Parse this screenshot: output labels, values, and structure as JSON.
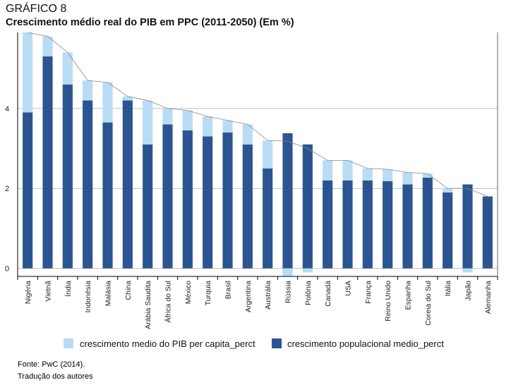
{
  "header": {
    "label": "GRÁFICO 8",
    "title": "Crescimento médio real do PIB em PPC (2011-2050) (Em %)"
  },
  "footer": {
    "source": "Fonte: PwC (2014).",
    "note": "Tradução dos autores"
  },
  "chart_data": {
    "type": "bar",
    "stacked": true,
    "categories": [
      "Nigéria",
      "Vietnã",
      "Índia",
      "Indonésia",
      "Malásia",
      "China",
      "Arábia Saudita",
      "África do Sul",
      "México",
      "Turquia",
      "Brasil",
      "Argentina",
      "Austrália",
      "Rússia",
      "Polônia",
      "Canadá",
      "USA",
      "França",
      "Reino Unido",
      "Espanha",
      "Coreia do Sul",
      "Itália",
      "Japão",
      "Alemanha"
    ],
    "series": [
      {
        "name": "crescimento medio do PIB per capita_perct",
        "color": "#b9dcf5",
        "values": [
          2.0,
          0.5,
          0.8,
          0.5,
          1.0,
          0.1,
          1.1,
          0.4,
          0.5,
          0.5,
          0.3,
          0.5,
          0.7,
          -0.2,
          -0.1,
          0.5,
          0.5,
          0.3,
          0.3,
          0.3,
          0.1,
          0.1,
          -0.1,
          0.0
        ]
      },
      {
        "name": "crescimento populacional medio_perct",
        "color": "#2b5590",
        "values": [
          3.9,
          5.3,
          4.6,
          4.2,
          3.65,
          4.2,
          3.1,
          3.6,
          3.45,
          3.3,
          3.4,
          3.1,
          2.5,
          3.38,
          3.1,
          2.2,
          2.2,
          2.2,
          2.18,
          2.1,
          2.27,
          1.9,
          2.1,
          1.8
        ]
      }
    ],
    "total_line": {
      "color": "#888888",
      "values": [
        5.9,
        5.8,
        5.4,
        4.7,
        4.65,
        4.3,
        4.2,
        4.0,
        3.95,
        3.8,
        3.7,
        3.6,
        3.2,
        3.18,
        3.0,
        2.7,
        2.7,
        2.5,
        2.48,
        2.4,
        2.37,
        2.0,
        2.0,
        1.8
      ]
    },
    "ylim": [
      -0.2,
      5.9
    ],
    "yticks": [
      0,
      2,
      4
    ],
    "grid": true,
    "legend_position": "bottom"
  }
}
